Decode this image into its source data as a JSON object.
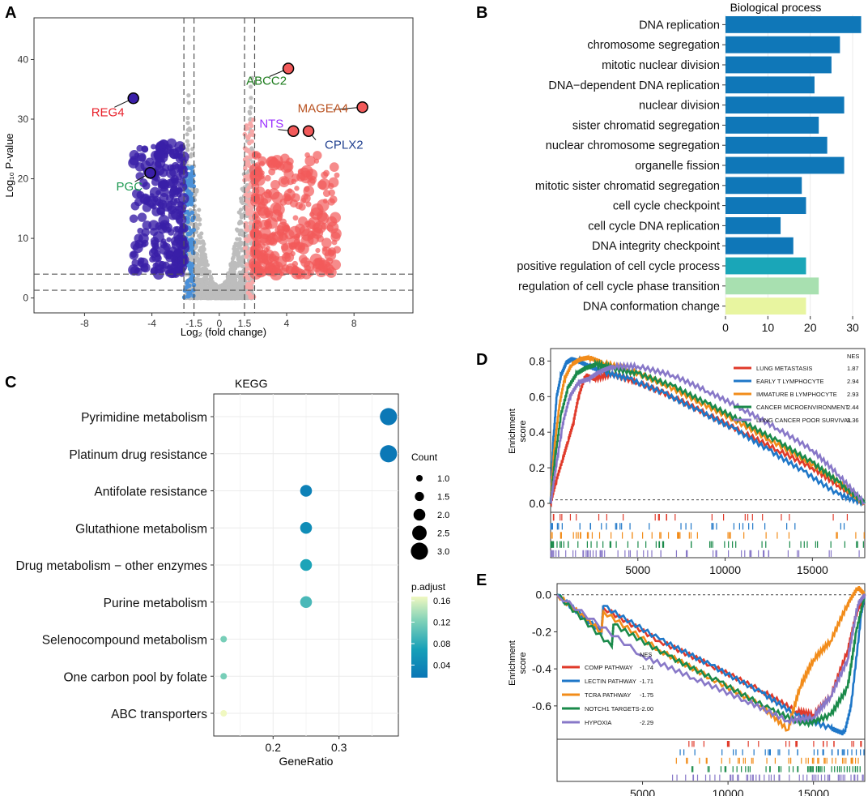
{
  "colors": {
    "down": "#3a1fa8",
    "down_light": "#4a90d9",
    "up": "#f25a5a",
    "up_light": "#f7a8a8",
    "ns": "#bdbdbd",
    "bar_blue": "#0f77b8",
    "bar_teal": "#1aa6b8",
    "bar_green": "#a8e0b0",
    "bar_yellow": "#e8f5a0",
    "panel_bg": "#ffffff",
    "grid": "#ebebeb"
  },
  "panels": {
    "a": "A",
    "b": "B",
    "c": "C",
    "d": "D",
    "e": "E"
  },
  "chart_data": [
    {
      "id": "A",
      "type": "scatter",
      "title": "",
      "xlabel": "Log₂ (fold change)",
      "ylabel": "Log₁₀ P-value",
      "xlim": [
        -11,
        11.5
      ],
      "ylim": [
        -2.5,
        47
      ],
      "xticks": [
        "-8",
        "-4",
        "-1.5",
        "0",
        "1.5",
        "4",
        "8"
      ],
      "xtick_values": [
        -8,
        -4,
        -1.5,
        0,
        1.5,
        4,
        8
      ],
      "yticks": [
        "0",
        "10",
        "20",
        "30",
        "40"
      ],
      "ytick_values": [
        0,
        10,
        20,
        30,
        40
      ],
      "vlines": [
        -2.1,
        -1.5,
        1.5,
        2.1
      ],
      "hlines": [
        1.3,
        4
      ],
      "labeled_points": [
        {
          "label": "REG4",
          "x": -5.1,
          "y": 33.5,
          "color": "#e8202a"
        },
        {
          "label": "PGC",
          "x": -4.1,
          "y": 21,
          "color": "#1a9850"
        },
        {
          "label": "ABCC2",
          "x": 4.1,
          "y": 38.5,
          "color": "#1a7a1a"
        },
        {
          "label": "NTS",
          "x": 4.4,
          "y": 28,
          "color": "#9b30ff"
        },
        {
          "label": "CPLX2",
          "x": 5.3,
          "y": 28,
          "color": "#1f3f8f"
        },
        {
          "label": "MAGEA4",
          "x": 8.5,
          "y": 32,
          "color": "#b8501e"
        }
      ]
    },
    {
      "id": "B",
      "type": "bar",
      "title": "Biological process",
      "orientation": "horizontal",
      "categories": [
        "DNA replication",
        "chromosome segregation",
        "mitotic nuclear division",
        "DNA−dependent DNA replication",
        "nuclear division",
        "sister chromatid segregation",
        "nuclear chromosome segregation",
        "organelle fission",
        "mitotic sister chromatid segregation",
        "cell cycle checkpoint",
        "cell cycle DNA replication",
        "DNA integrity checkpoint",
        "positive regulation of cell cycle process",
        "regulation of cell cycle phase transition",
        "DNA conformation change"
      ],
      "values": [
        32,
        27,
        25,
        21,
        28,
        22,
        24,
        28,
        18,
        19,
        13,
        16,
        19,
        22,
        19
      ],
      "bar_colors": [
        "#0f77b8",
        "#0f77b8",
        "#0f77b8",
        "#0f77b8",
        "#0f77b8",
        "#0f77b8",
        "#0f77b8",
        "#0f77b8",
        "#0f77b8",
        "#0f77b8",
        "#0f77b8",
        "#0f77b8",
        "#1aa6b8",
        "#a8e0b0",
        "#e8f5a0"
      ],
      "xlim": [
        0,
        34
      ],
      "xticks": [
        "0",
        "10",
        "20",
        "30"
      ],
      "xtick_values": [
        0,
        10,
        20,
        30
      ]
    },
    {
      "id": "C",
      "type": "scatter",
      "title": "KEGG",
      "xlabel": "GeneRatio",
      "categories": [
        "Pyrimidine metabolism",
        "Platinum drug resistance",
        "Antifolate resistance",
        "Glutathione metabolism",
        "Drug metabolism − other enzymes",
        "Purine metabolism",
        "Selenocompound metabolism",
        "One carbon pool by folate",
        "ABC transporters"
      ],
      "gene_ratio": [
        0.375,
        0.375,
        0.25,
        0.25,
        0.25,
        0.25,
        0.125,
        0.125,
        0.125
      ],
      "count": [
        3,
        3,
        2,
        2,
        2,
        2,
        1,
        1,
        1
      ],
      "p_adjust": [
        0.022,
        0.022,
        0.032,
        0.045,
        0.07,
        0.09,
        0.11,
        0.11,
        0.16
      ],
      "xlim": [
        0.11,
        0.39
      ],
      "xticks": [
        "0.2",
        "0.3"
      ],
      "xtick_values": [
        0.2,
        0.3
      ],
      "legend_count_title": "Count",
      "legend_count_labels": [
        "1.0",
        "1.5",
        "2.0",
        "2.5",
        "3.0"
      ],
      "legend_padj_title": "p.adjust",
      "legend_padj_labels": [
        "0.16",
        "0.12",
        "0.08",
        "0.04"
      ]
    },
    {
      "id": "D",
      "type": "line",
      "ylabel": "Enrichment score",
      "xlim": [
        0,
        18000
      ],
      "ylim": [
        -0.05,
        0.87
      ],
      "yticks": [
        "0.0",
        "0.2",
        "0.4",
        "0.6",
        "0.8"
      ],
      "ytick_values": [
        0,
        0.2,
        0.4,
        0.6,
        0.8
      ],
      "xticks": [
        "5000",
        "10000",
        "15000"
      ],
      "xtick_values": [
        5000,
        10000,
        15000
      ],
      "nes_header": "NES",
      "series": [
        {
          "name": "LUNG METASTASIS",
          "nes": "1.87",
          "color": "#e03a2a",
          "x": [
            0,
            300,
            700,
            1000,
            1300,
            1600,
            2000,
            2500,
            3500,
            5000,
            7000,
            9000,
            11000,
            13000,
            15000,
            16500,
            18000
          ],
          "values": [
            0,
            0.12,
            0.25,
            0.35,
            0.45,
            0.6,
            0.72,
            0.7,
            0.73,
            0.68,
            0.6,
            0.5,
            0.4,
            0.3,
            0.2,
            0.1,
            0
          ]
        },
        {
          "name": "EARLY T LYMPHOCYTE",
          "nes": "2.94",
          "color": "#1f77c8",
          "x": [
            0,
            150,
            350,
            600,
            900,
            1200,
            1600,
            2200,
            3000,
            4500,
            6500,
            8500,
            10500,
            12500,
            14500,
            16500,
            18000
          ],
          "values": [
            0,
            0.35,
            0.6,
            0.72,
            0.79,
            0.81,
            0.8,
            0.77,
            0.74,
            0.7,
            0.62,
            0.52,
            0.42,
            0.3,
            0.18,
            0.05,
            0
          ]
        },
        {
          "name": "IMMATURE B LYMPHOCYTE",
          "nes": "2.93",
          "color": "#f28c1a",
          "x": [
            0,
            200,
            500,
            800,
            1200,
            1700,
            2200,
            3000,
            4500,
            6500,
            8500,
            10500,
            12500,
            14500,
            16500,
            18000
          ],
          "values": [
            0,
            0.3,
            0.55,
            0.7,
            0.78,
            0.81,
            0.82,
            0.79,
            0.75,
            0.67,
            0.57,
            0.47,
            0.36,
            0.25,
            0.12,
            0
          ]
        },
        {
          "name": "CANCER MICROENVIRONMENT",
          "nes": "2.44",
          "color": "#1a8a4a",
          "x": [
            0,
            250,
            600,
            1000,
            1500,
            2000,
            2600,
            3500,
            5000,
            7000,
            9000,
            11000,
            13000,
            15000,
            16500,
            18000
          ],
          "values": [
            0,
            0.25,
            0.5,
            0.65,
            0.73,
            0.76,
            0.78,
            0.76,
            0.73,
            0.66,
            0.56,
            0.46,
            0.35,
            0.23,
            0.12,
            0
          ]
        },
        {
          "name": "LUNG CANCER POOR SURVIVAL",
          "nes": "3.36",
          "color": "#8878c8",
          "x": [
            0,
            300,
            700,
            1100,
            1600,
            2200,
            2800,
            3600,
            5000,
            7000,
            9000,
            11000,
            13000,
            15000,
            16500,
            18000
          ],
          "values": [
            0,
            0.2,
            0.45,
            0.6,
            0.68,
            0.7,
            0.74,
            0.77,
            0.77,
            0.72,
            0.63,
            0.53,
            0.42,
            0.3,
            0.16,
            0
          ]
        }
      ]
    },
    {
      "id": "E",
      "type": "line",
      "ylabel": "Enrichment score",
      "xlim": [
        0,
        18000
      ],
      "ylim": [
        -0.78,
        0.06
      ],
      "yticks": [
        "0.0",
        "-0.2",
        "-0.4",
        "-0.6"
      ],
      "ytick_values": [
        0,
        -0.2,
        -0.4,
        -0.6
      ],
      "xticks": [
        "5000",
        "10000",
        "15000"
      ],
      "xtick_values": [
        5000,
        10000,
        15000
      ],
      "nes_header": "NES",
      "series": [
        {
          "name": "COMP PATHWAY",
          "nes": "-1.74",
          "color": "#e03a2a",
          "x": [
            0,
            2600,
            2700,
            6000,
            9000,
            12000,
            14000,
            15000,
            16000,
            17000,
            17500,
            18000
          ],
          "values": [
            0,
            -0.2,
            -0.07,
            -0.25,
            -0.38,
            -0.52,
            -0.63,
            -0.65,
            -0.55,
            -0.3,
            -0.1,
            0
          ]
        },
        {
          "name": "LECTIN PATHWAY",
          "nes": "-1.71",
          "color": "#1f77c8",
          "x": [
            0,
            2600,
            2700,
            6000,
            9000,
            12000,
            14000,
            16000,
            16800,
            17200,
            17800,
            18000
          ],
          "values": [
            0,
            -0.2,
            -0.06,
            -0.24,
            -0.38,
            -0.53,
            -0.65,
            -0.72,
            -0.75,
            -0.6,
            -0.1,
            0
          ]
        },
        {
          "name": "TCRA PATHWAY",
          "nes": "-1.75",
          "color": "#f28c1a",
          "x": [
            0,
            2600,
            2700,
            6000,
            9000,
            12000,
            13500,
            14200,
            15000,
            16000,
            17000,
            17600,
            18000
          ],
          "values": [
            0,
            -0.2,
            -0.09,
            -0.3,
            -0.45,
            -0.6,
            -0.73,
            -0.5,
            -0.35,
            -0.25,
            -0.05,
            0.04,
            0
          ]
        },
        {
          "name": "NOTCH1 TARGETS",
          "nes": "-2.00",
          "color": "#1a8a4a",
          "x": [
            0,
            3200,
            3300,
            6500,
            9500,
            12500,
            14500,
            16000,
            17000,
            17500,
            18000
          ],
          "values": [
            0,
            -0.28,
            -0.16,
            -0.33,
            -0.47,
            -0.62,
            -0.7,
            -0.65,
            -0.5,
            -0.2,
            0
          ]
        },
        {
          "name": "HYPOXIA",
          "nes": "-2.29",
          "color": "#8878c8",
          "x": [
            0,
            5000,
            8000,
            11000,
            13500,
            15000,
            16000,
            17000,
            17600,
            18000
          ],
          "values": [
            0,
            -0.33,
            -0.45,
            -0.57,
            -0.68,
            -0.66,
            -0.55,
            -0.35,
            -0.05,
            0
          ]
        }
      ]
    }
  ]
}
